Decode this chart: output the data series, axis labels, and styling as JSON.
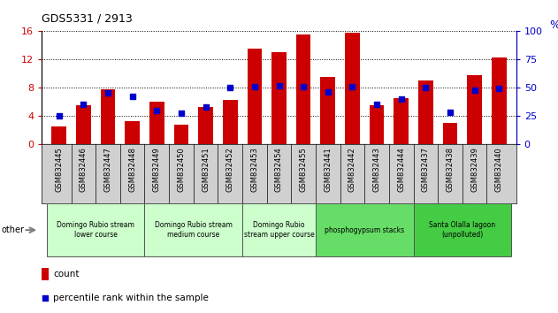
{
  "title": "GDS5331 / 2913",
  "samples": [
    "GSM832445",
    "GSM832446",
    "GSM832447",
    "GSM832448",
    "GSM832449",
    "GSM832450",
    "GSM832451",
    "GSM832452",
    "GSM832453",
    "GSM832454",
    "GSM832455",
    "GSM832441",
    "GSM832442",
    "GSM832443",
    "GSM832444",
    "GSM832437",
    "GSM832438",
    "GSM832439",
    "GSM832440"
  ],
  "counts": [
    2.5,
    5.5,
    7.8,
    3.2,
    6.0,
    2.8,
    5.2,
    6.2,
    13.5,
    13.0,
    15.5,
    9.5,
    15.8,
    5.5,
    6.5,
    9.0,
    3.0,
    9.8,
    12.3
  ],
  "percentiles": [
    25,
    35,
    45,
    42,
    30,
    27,
    33,
    50,
    51,
    52,
    51,
    46,
    51,
    35,
    40,
    50,
    28,
    48,
    49
  ],
  "count_color": "#cc0000",
  "percentile_color": "#0000cc",
  "ylim_left": [
    0,
    16
  ],
  "ylim_right": [
    0,
    100
  ],
  "yticks_left": [
    0,
    4,
    8,
    12,
    16
  ],
  "yticks_right": [
    0,
    25,
    50,
    75,
    100
  ],
  "groups": [
    {
      "label": "Domingo Rubio stream\nlower course",
      "start": 0,
      "end": 4,
      "color": "#ccffcc"
    },
    {
      "label": "Domingo Rubio stream\nmedium course",
      "start": 4,
      "end": 8,
      "color": "#ccffcc"
    },
    {
      "label": "Domingo Rubio\nstream upper course",
      "start": 8,
      "end": 11,
      "color": "#ccffcc"
    },
    {
      "label": "phosphogypsum stacks",
      "start": 11,
      "end": 15,
      "color": "#66dd66"
    },
    {
      "label": "Santa Olalla lagoon\n(unpolluted)",
      "start": 15,
      "end": 19,
      "color": "#44cc44"
    }
  ],
  "legend_count_label": "count",
  "legend_percentile_label": "percentile rank within the sample"
}
